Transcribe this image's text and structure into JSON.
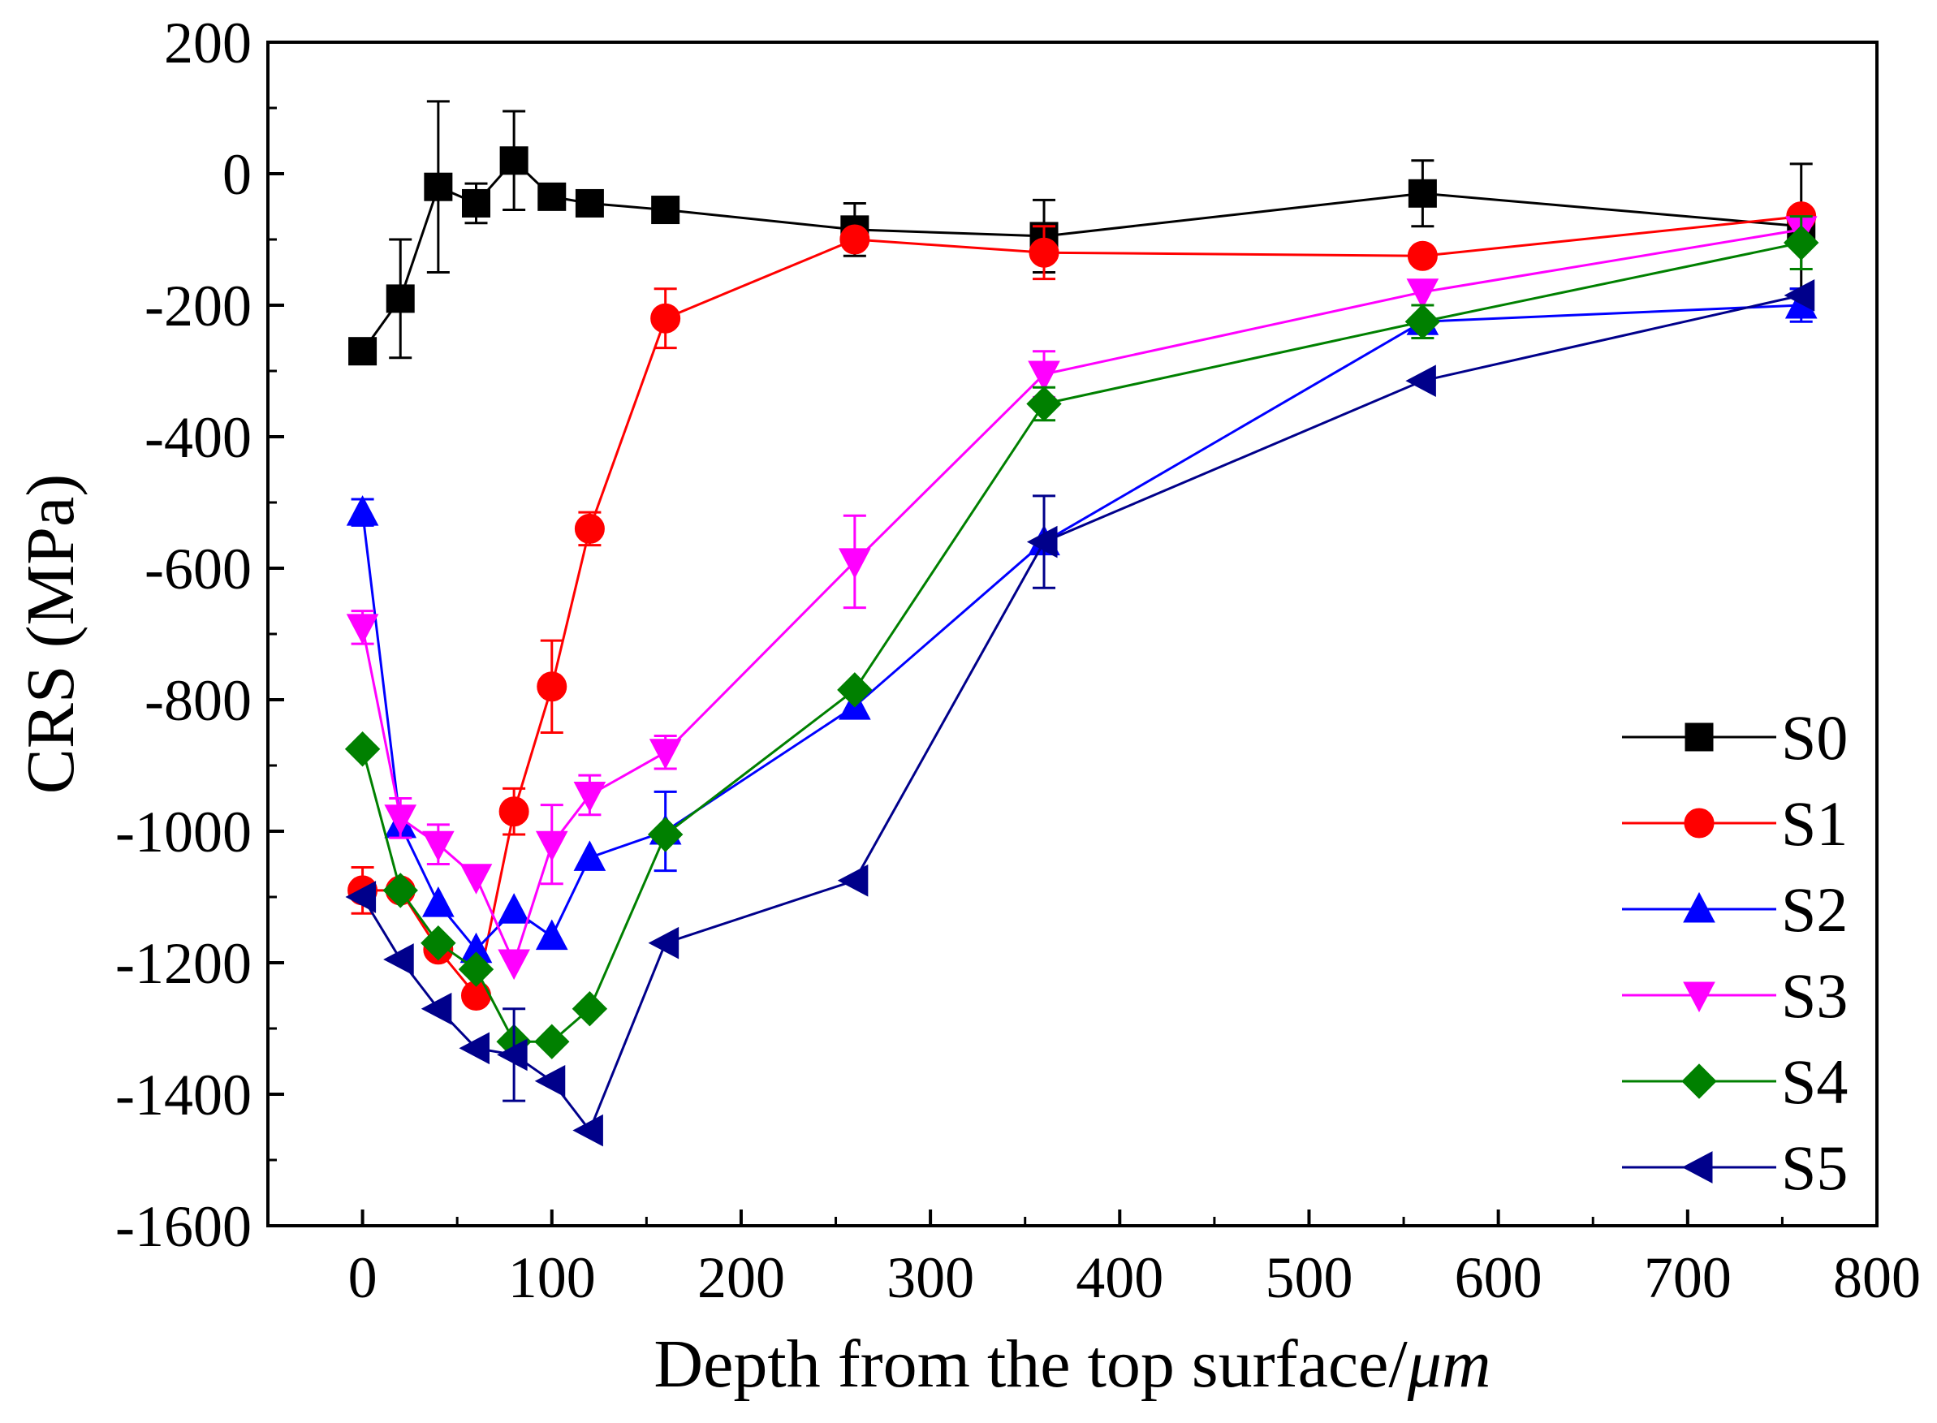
{
  "chart_data": {
    "type": "line",
    "title": "",
    "xlabel": "Depth from the top surface/",
    "xlabel_unit": "μm",
    "ylabel": "CRS (MPa)",
    "xlim": [
      -50,
      800
    ],
    "ylim": [
      -1600,
      200
    ],
    "x_ticks": [
      0,
      100,
      200,
      300,
      400,
      500,
      600,
      700,
      800
    ],
    "y_ticks": [
      200,
      0,
      -200,
      -400,
      -600,
      -800,
      -1000,
      -1200,
      -1400,
      -1600
    ],
    "grid": false,
    "legend_position": "bottom-right",
    "series": [
      {
        "name": "S0",
        "color": "#000000",
        "marker": "square",
        "x": [
          0,
          20,
          40,
          60,
          80,
          100,
          120,
          160,
          260,
          360,
          560,
          760
        ],
        "y": [
          -270,
          -190,
          -20,
          -45,
          20,
          -35,
          -45,
          -55,
          -85,
          -95,
          -30,
          -80
        ],
        "err": [
          0,
          90,
          130,
          30,
          75,
          0,
          0,
          0,
          40,
          55,
          50,
          95
        ]
      },
      {
        "name": "S1",
        "color": "#ff0000",
        "marker": "circle",
        "x": [
          0,
          20,
          40,
          60,
          80,
          100,
          120,
          160,
          260,
          360,
          560,
          760
        ],
        "y": [
          -1090,
          -1090,
          -1180,
          -1250,
          -970,
          -780,
          -540,
          -220,
          -100,
          -120,
          -125,
          -65
        ],
        "err": [
          35,
          0,
          0,
          0,
          35,
          70,
          25,
          45,
          0,
          40,
          0,
          0
        ]
      },
      {
        "name": "S2",
        "color": "#0000ff",
        "marker": "triangle-up",
        "x": [
          0,
          20,
          40,
          60,
          80,
          100,
          120,
          160,
          260,
          360,
          560,
          760
        ],
        "y": [
          -515,
          -990,
          -1110,
          -1180,
          -1120,
          -1160,
          -1040,
          -1000,
          -810,
          -560,
          -225,
          -200
        ],
        "err": [
          20,
          0,
          0,
          0,
          0,
          0,
          0,
          60,
          0,
          0,
          0,
          25
        ]
      },
      {
        "name": "S3",
        "color": "#ff00ff",
        "marker": "triangle-down",
        "x": [
          0,
          20,
          40,
          60,
          80,
          100,
          120,
          160,
          260,
          360,
          560,
          760
        ],
        "y": [
          -690,
          -980,
          -1020,
          -1070,
          -1200,
          -1020,
          -945,
          -880,
          -590,
          -305,
          -180,
          -85
        ],
        "err": [
          25,
          30,
          30,
          0,
          0,
          60,
          30,
          25,
          70,
          35,
          0,
          0
        ]
      },
      {
        "name": "S4",
        "color": "#008000",
        "marker": "diamond",
        "x": [
          0,
          20,
          40,
          60,
          80,
          100,
          120,
          160,
          260,
          360,
          560,
          760
        ],
        "y": [
          -875,
          -1090,
          -1170,
          -1210,
          -1320,
          -1320,
          -1270,
          -1005,
          -785,
          -350,
          -225,
          -105
        ],
        "err": [
          0,
          0,
          0,
          0,
          0,
          0,
          0,
          0,
          0,
          25,
          25,
          40
        ]
      },
      {
        "name": "S5",
        "color": "#00008b",
        "marker": "triangle-left",
        "x": [
          0,
          20,
          40,
          60,
          80,
          100,
          120,
          160,
          260,
          360,
          560,
          760
        ],
        "y": [
          -1100,
          -1195,
          -1270,
          -1330,
          -1340,
          -1380,
          -1455,
          -1170,
          -1075,
          -560,
          -315,
          -185
        ],
        "err": [
          0,
          0,
          0,
          0,
          70,
          0,
          0,
          0,
          0,
          70,
          0,
          0
        ]
      }
    ]
  }
}
